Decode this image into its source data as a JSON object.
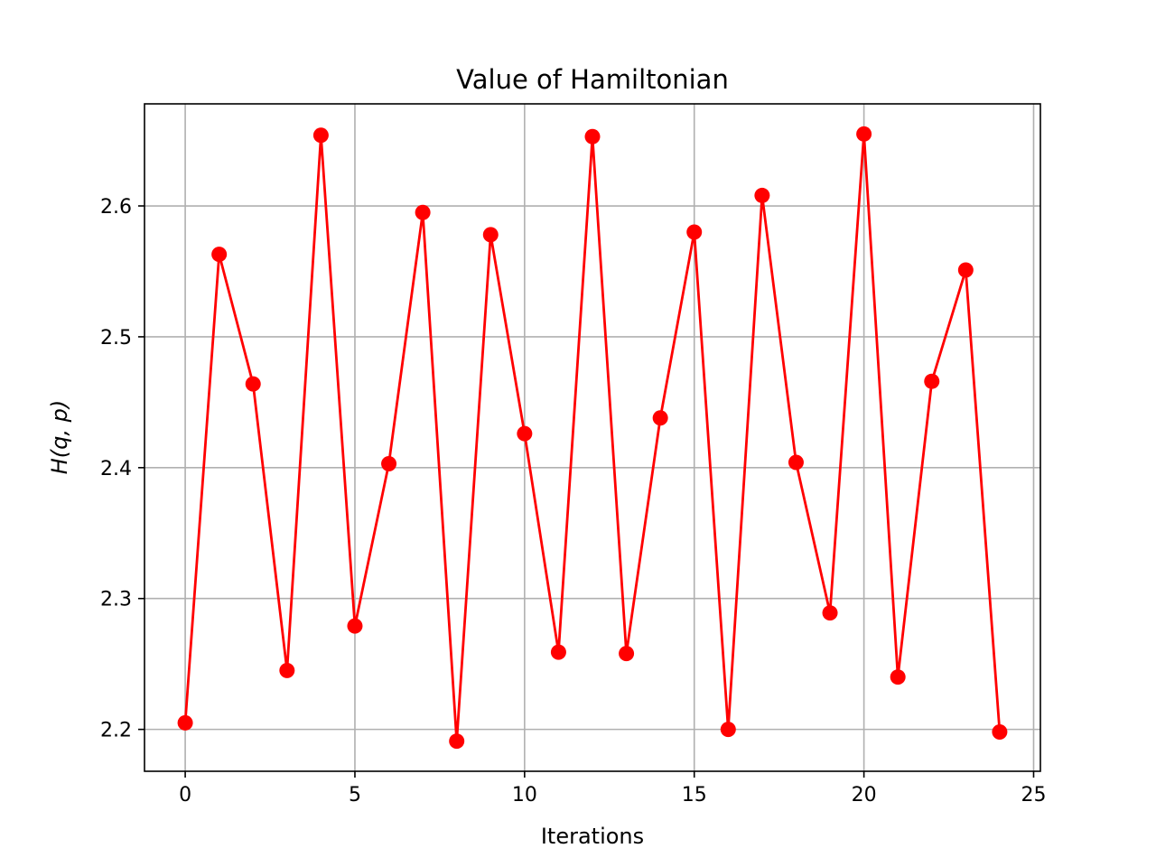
{
  "chart_data": {
    "type": "line",
    "title": "Value of Hamiltonian",
    "xlabel": "Iterations",
    "ylabel": "H(q, p)",
    "xlim": [
      -1.2,
      25.2
    ],
    "ylim": [
      2.168,
      2.678
    ],
    "xticks": [
      0,
      5,
      10,
      15,
      20,
      25
    ],
    "yticks": [
      2.2,
      2.3,
      2.4,
      2.5,
      2.6
    ],
    "xtick_labels": [
      "0",
      "5",
      "10",
      "15",
      "20",
      "25"
    ],
    "ytick_labels": [
      "2.2",
      "2.3",
      "2.4",
      "2.5",
      "2.6"
    ],
    "grid": true,
    "series": [
      {
        "color": "#ff0000",
        "marker": "circle",
        "x": [
          0,
          1,
          2,
          3,
          4,
          5,
          6,
          7,
          8,
          9,
          10,
          11,
          12,
          13,
          14,
          15,
          16,
          17,
          18,
          19,
          20,
          21,
          22,
          23,
          24
        ],
        "y": [
          2.205,
          2.563,
          2.464,
          2.245,
          2.654,
          2.279,
          2.403,
          2.595,
          2.191,
          2.578,
          2.426,
          2.259,
          2.653,
          2.258,
          2.438,
          2.58,
          2.2,
          2.608,
          2.404,
          2.289,
          2.655,
          2.24,
          2.466,
          2.551,
          2.198
        ]
      }
    ]
  }
}
